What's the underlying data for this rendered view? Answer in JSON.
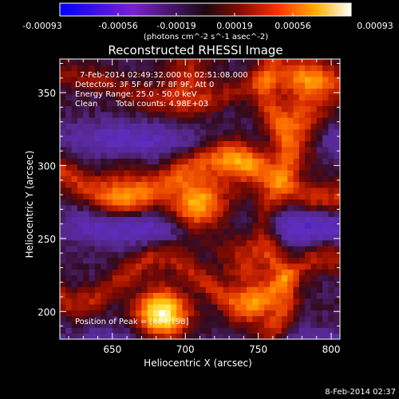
{
  "colorbar": {
    "tick_labels": [
      "-0.00093",
      "-0.00056",
      "-0.00019",
      "0.00019",
      "0.00056",
      "0.00093"
    ],
    "units": "(photons cm^-2 s^-1 asec^-2)",
    "range": [
      -0.00093,
      0.00093
    ]
  },
  "title": "Reconstructed RHESSI Image",
  "annotations": {
    "time_range": "7-Feb-2014 02:49:32.000 to 02:51:08.000",
    "detectors": "Detectors: 3F 5F 6F 7F 8F 9F, Att 0",
    "energy_range": "Energy Range: 25.0 - 50.0 keV",
    "clean_label": "Clean",
    "total_counts": "Total counts: 4.98E+03",
    "peak_position": "Position of Peak = [684,198]"
  },
  "footer": {
    "timestamp": "8-Feb-2014 02:37"
  },
  "chart_data": {
    "type": "heatmap",
    "title": "Reconstructed RHESSI Image",
    "xlabel": "Heliocentric X (arcsec)",
    "ylabel": "Heliocentric Y (arcsec)",
    "xlim": [
      614,
      806
    ],
    "ylim": [
      181,
      373
    ],
    "x_ticks": [
      650,
      700,
      750,
      800
    ],
    "y_ticks": [
      200,
      250,
      300,
      350
    ],
    "colormap": "blue-purple-red-yellow-white",
    "color_range": [
      -0.00093,
      0.00093
    ],
    "units": "photons cm^-2 s^-1 asec^-2",
    "peak": [
      684,
      198
    ],
    "sources": [
      {
        "x": 684,
        "y": 198,
        "intensity": 0.00093
      },
      {
        "x": 708,
        "y": 274,
        "intensity": 0.00068
      },
      {
        "x": 776,
        "y": 322,
        "intensity": 0.00058
      },
      {
        "x": 786,
        "y": 356,
        "intensity": 0.00042
      },
      {
        "x": 660,
        "y": 282,
        "intensity": 0.0003
      },
      {
        "x": 738,
        "y": 302,
        "intensity": 0.00035
      },
      {
        "x": 742,
        "y": 238,
        "intensity": 0.0003
      },
      {
        "x": 748,
        "y": 204,
        "intensity": 0.00032
      },
      {
        "x": 700,
        "y": 360,
        "intensity": 0.0003
      }
    ]
  }
}
